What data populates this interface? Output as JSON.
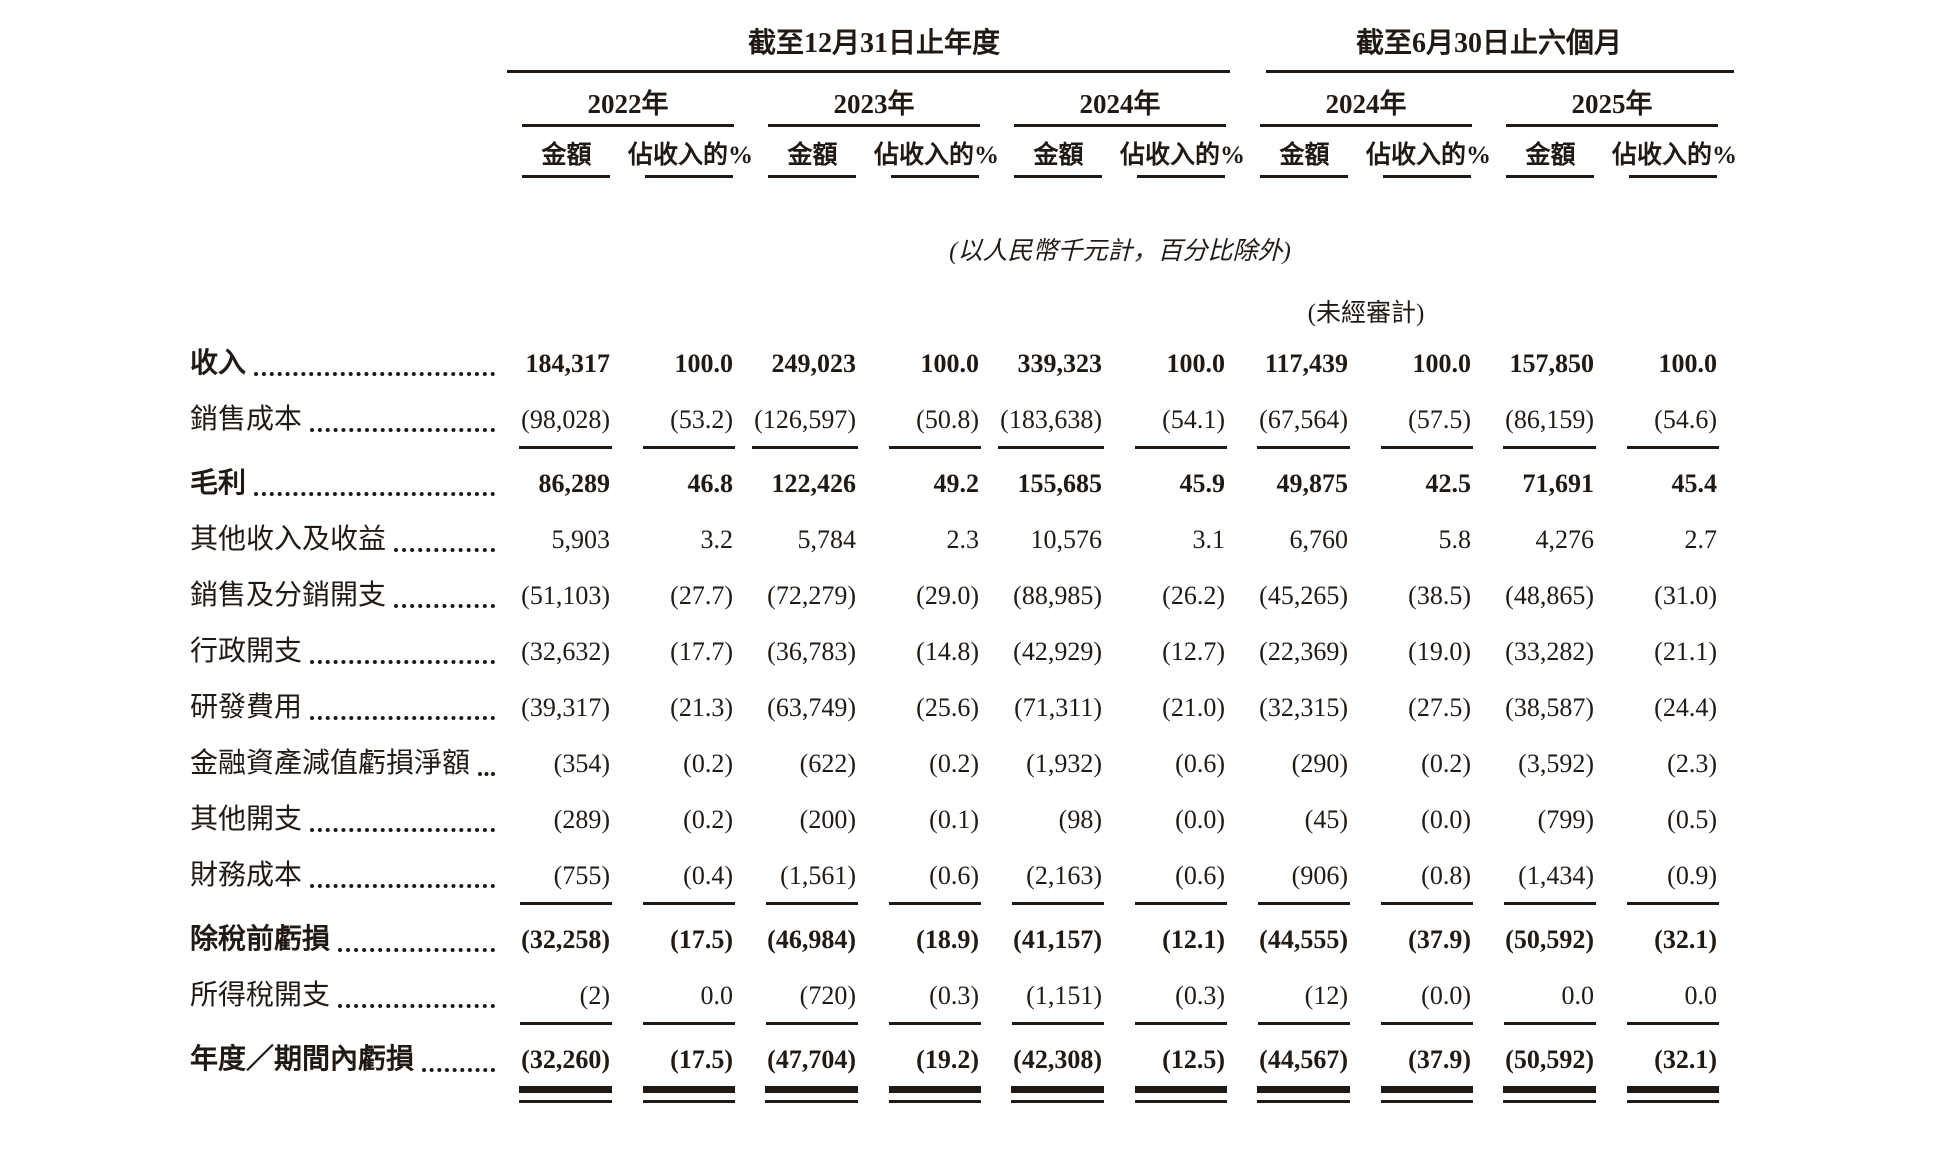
{
  "header": {
    "period_groups": [
      {
        "label": "截至12月31日止年度",
        "span_cols": 6
      },
      {
        "label": "截至6月30日止六個月",
        "span_cols": 4
      }
    ],
    "year_groups": [
      {
        "label": "2022年"
      },
      {
        "label": "2023年"
      },
      {
        "label": "2024年"
      },
      {
        "label": "2024年"
      },
      {
        "label": "2025年"
      }
    ],
    "measure_labels": {
      "amount": "金額",
      "pct": "佔收入的%"
    },
    "unit_note": "(以人民幣千元計，百分比除外)",
    "unaudited_note": "(未經審計)"
  },
  "rows": [
    {
      "label": "收入",
      "bold": true,
      "rule": "none",
      "values": [
        "184,317",
        "100.0",
        "249,023",
        "100.0",
        "339,323",
        "100.0",
        "117,439",
        "100.0",
        "157,850",
        "100.0"
      ]
    },
    {
      "label": "銷售成本",
      "bold": false,
      "rule": "single",
      "values": [
        "(98,028)",
        "(53.2)",
        "(126,597)",
        "(50.8)",
        "(183,638)",
        "(54.1)",
        "(67,564)",
        "(57.5)",
        "(86,159)",
        "(54.6)"
      ]
    },
    {
      "label": "毛利",
      "bold": true,
      "rule": "none",
      "values": [
        "86,289",
        "46.8",
        "122,426",
        "49.2",
        "155,685",
        "45.9",
        "49,875",
        "42.5",
        "71,691",
        "45.4"
      ]
    },
    {
      "label": "其他收入及收益",
      "bold": false,
      "rule": "none",
      "values": [
        "5,903",
        "3.2",
        "5,784",
        "2.3",
        "10,576",
        "3.1",
        "6,760",
        "5.8",
        "4,276",
        "2.7"
      ]
    },
    {
      "label": "銷售及分銷開支",
      "bold": false,
      "rule": "none",
      "values": [
        "(51,103)",
        "(27.7)",
        "(72,279)",
        "(29.0)",
        "(88,985)",
        "(26.2)",
        "(45,265)",
        "(38.5)",
        "(48,865)",
        "(31.0)"
      ]
    },
    {
      "label": "行政開支",
      "bold": false,
      "rule": "none",
      "values": [
        "(32,632)",
        "(17.7)",
        "(36,783)",
        "(14.8)",
        "(42,929)",
        "(12.7)",
        "(22,369)",
        "(19.0)",
        "(33,282)",
        "(21.1)"
      ]
    },
    {
      "label": "研發費用",
      "bold": false,
      "rule": "none",
      "values": [
        "(39,317)",
        "(21.3)",
        "(63,749)",
        "(25.6)",
        "(71,311)",
        "(21.0)",
        "(32,315)",
        "(27.5)",
        "(38,587)",
        "(24.4)"
      ]
    },
    {
      "label": "金融資產減值虧損淨額",
      "bold": false,
      "rule": "none",
      "values": [
        "(354)",
        "(0.2)",
        "(622)",
        "(0.2)",
        "(1,932)",
        "(0.6)",
        "(290)",
        "(0.2)",
        "(3,592)",
        "(2.3)"
      ]
    },
    {
      "label": "其他開支",
      "bold": false,
      "rule": "none",
      "values": [
        "(289)",
        "(0.2)",
        "(200)",
        "(0.1)",
        "(98)",
        "(0.0)",
        "(45)",
        "(0.0)",
        "(799)",
        "(0.5)"
      ]
    },
    {
      "label": "財務成本",
      "bold": false,
      "rule": "single",
      "values": [
        "(755)",
        "(0.4)",
        "(1,561)",
        "(0.6)",
        "(2,163)",
        "(0.6)",
        "(906)",
        "(0.8)",
        "(1,434)",
        "(0.9)"
      ]
    },
    {
      "label": "除稅前虧損",
      "bold": true,
      "rule": "none",
      "values": [
        "(32,258)",
        "(17.5)",
        "(46,984)",
        "(18.9)",
        "(41,157)",
        "(12.1)",
        "(44,555)",
        "(37.9)",
        "(50,592)",
        "(32.1)"
      ]
    },
    {
      "label": "所得稅開支",
      "bold": false,
      "rule": "single",
      "values": [
        "(2)",
        "0.0",
        "(720)",
        "(0.3)",
        "(1,151)",
        "(0.3)",
        "(12)",
        "(0.0)",
        "0.0",
        "0.0"
      ]
    },
    {
      "label": "年度／期間內虧損",
      "bold": true,
      "rule": "double",
      "values": [
        "(32,260)",
        "(17.5)",
        "(47,704)",
        "(19.2)",
        "(42,308)",
        "(12.5)",
        "(44,567)",
        "(37.9)",
        "(50,592)",
        "(32.1)"
      ]
    }
  ]
}
